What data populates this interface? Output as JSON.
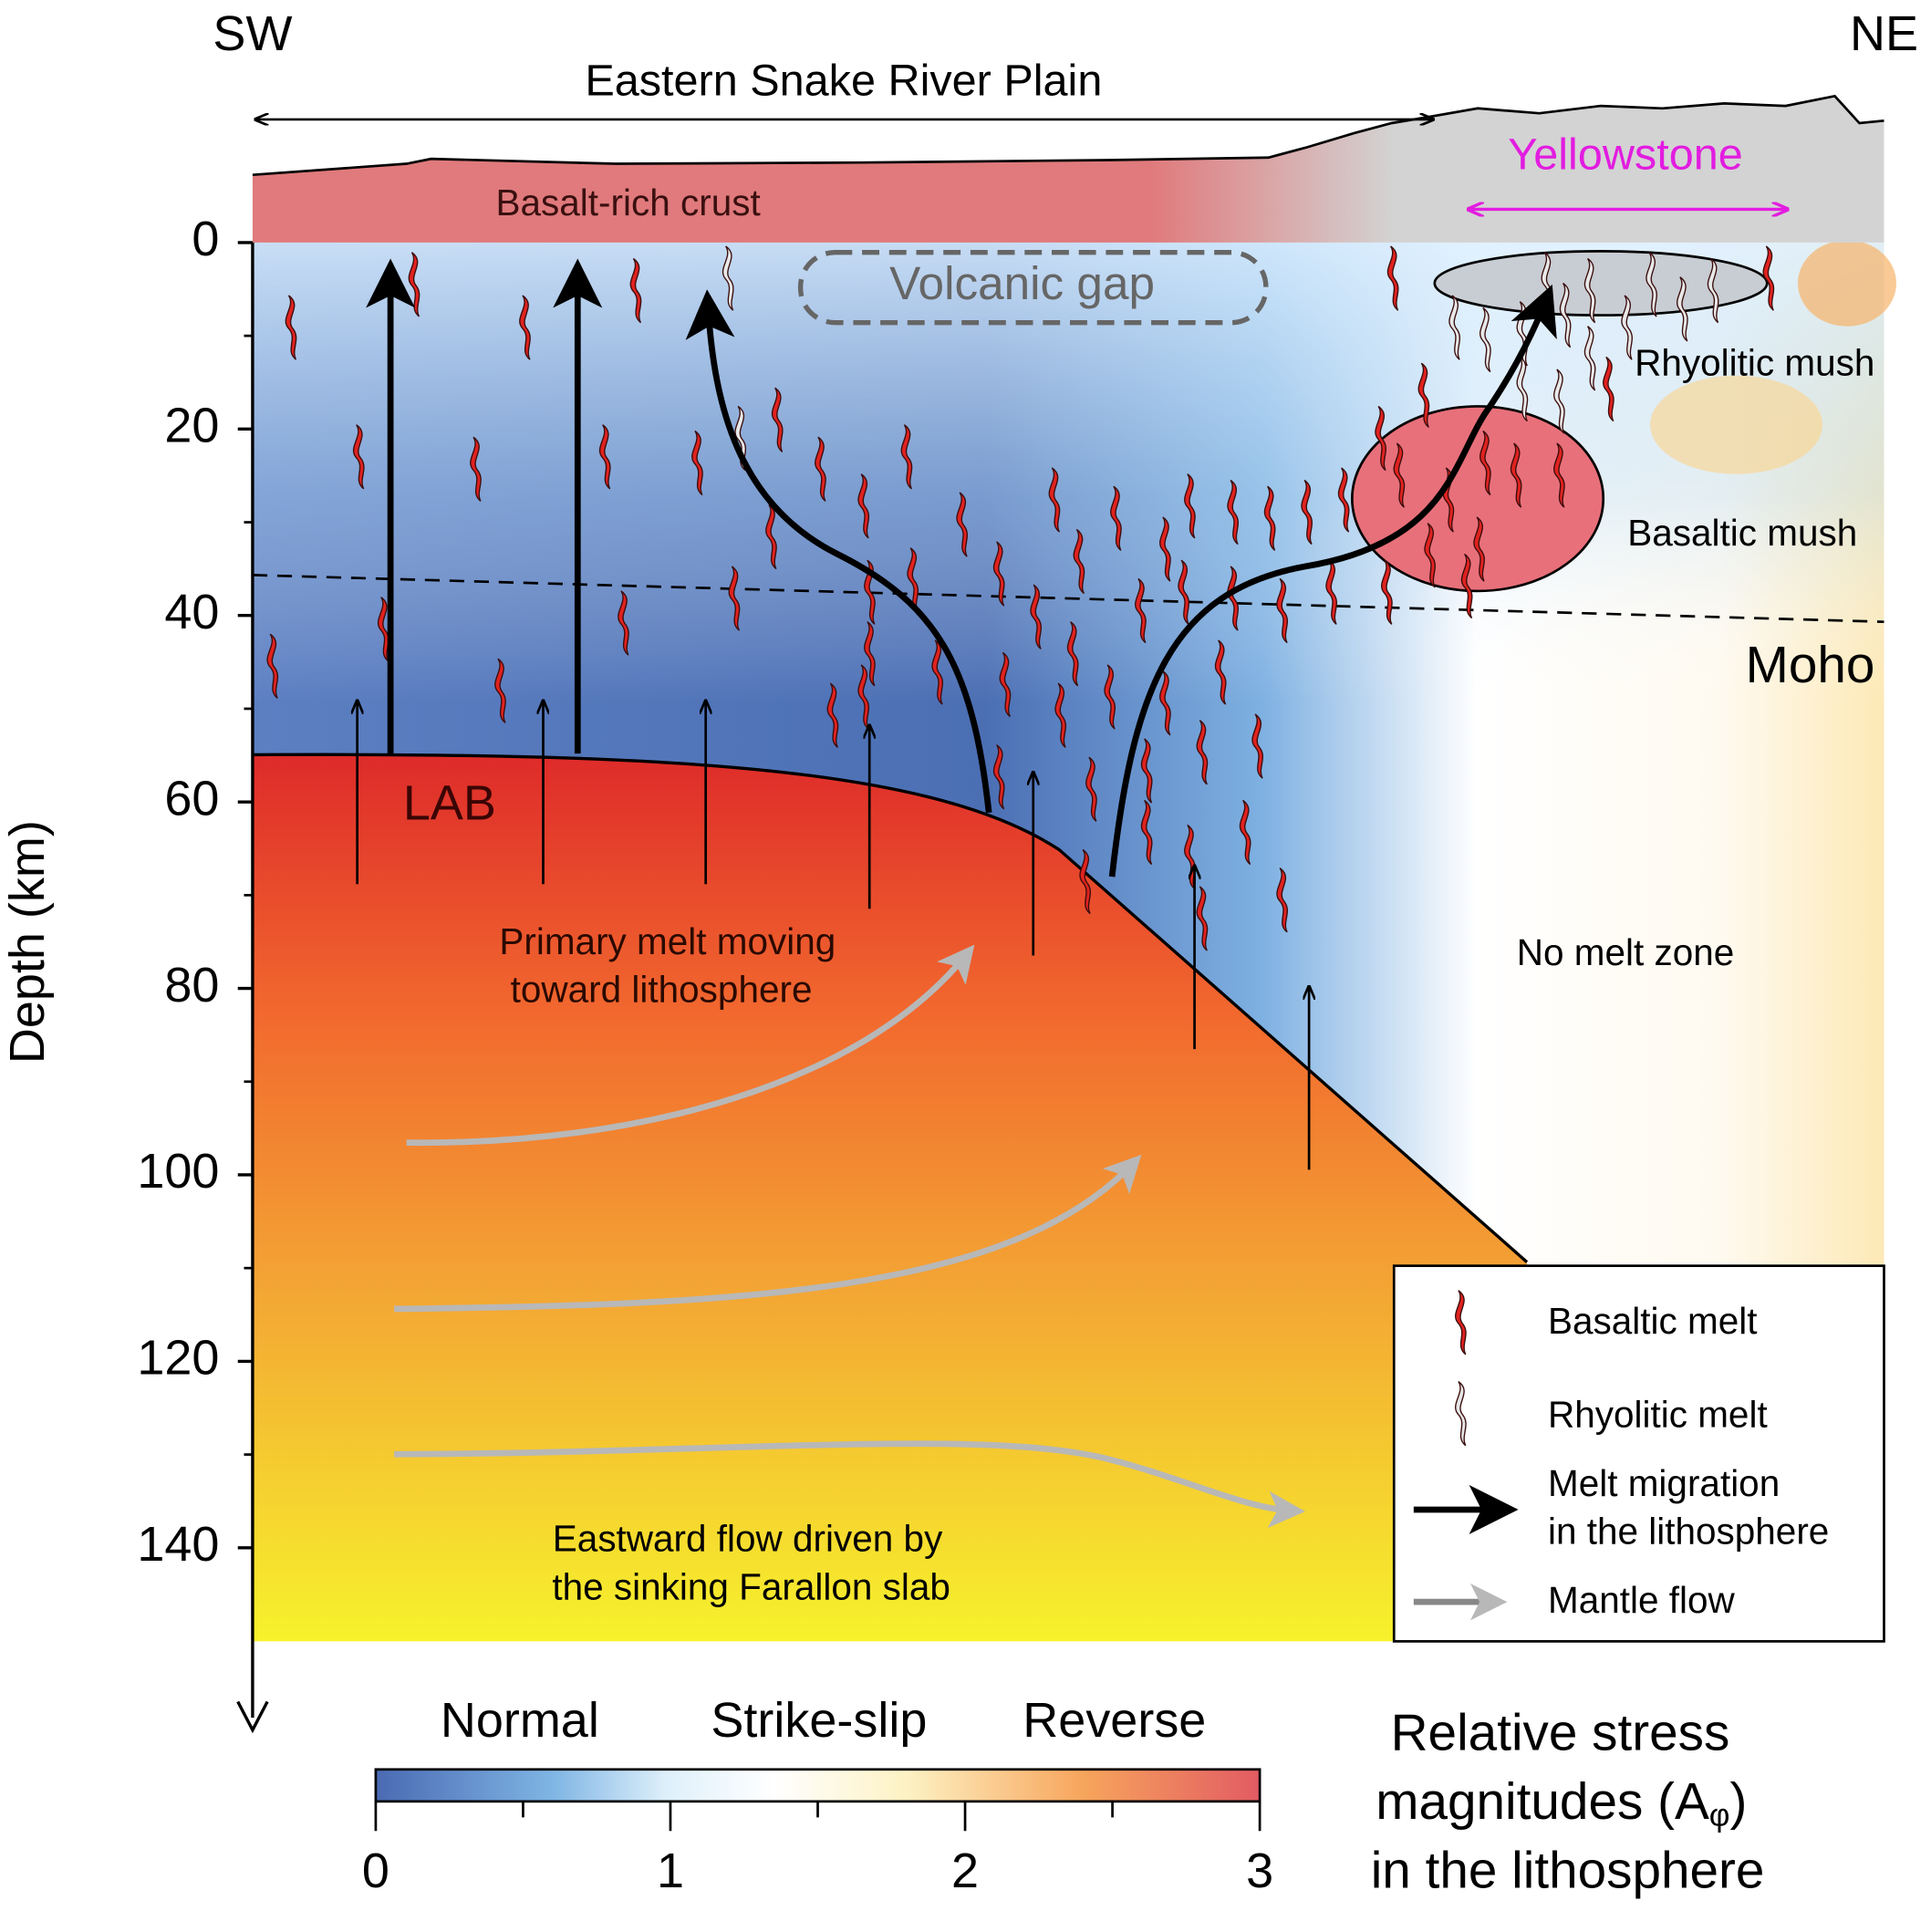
{
  "header": {
    "left": "SW",
    "right": "NE",
    "plain": "Eastern Snake River Plain",
    "yellowstone": "Yellowstone"
  },
  "labels": {
    "crust": "Basalt-rich crust",
    "gap": "Volcanic gap",
    "rhyolitic_mush": "Rhyolitic mush",
    "basaltic_mush": "Basaltic mush",
    "moho": "Moho",
    "lab": "LAB",
    "primary": [
      "Primary melt moving",
      "toward lithosphere"
    ],
    "no_melt": "No melt zone",
    "eastward": [
      "Eastward flow driven by",
      "the sinking Farallon slab"
    ]
  },
  "depth_axis": {
    "label": "Depth (km)",
    "ticks": [
      0,
      20,
      40,
      60,
      80,
      100,
      120,
      140
    ]
  },
  "legend": {
    "basaltic": "Basaltic melt",
    "rhyolitic": "Rhyolitic melt",
    "migration": [
      "Melt migration",
      "in the lithosphere"
    ],
    "mantle": "Mantle flow"
  },
  "colorbar": {
    "regimes": [
      "Normal",
      "Strike-slip",
      "Reverse"
    ],
    "ticks": [
      0,
      1,
      2,
      3
    ],
    "title": [
      "Relative stress",
      "magnitudes (A",
      "φ",
      ")",
      "in the lithosphere"
    ]
  }
}
